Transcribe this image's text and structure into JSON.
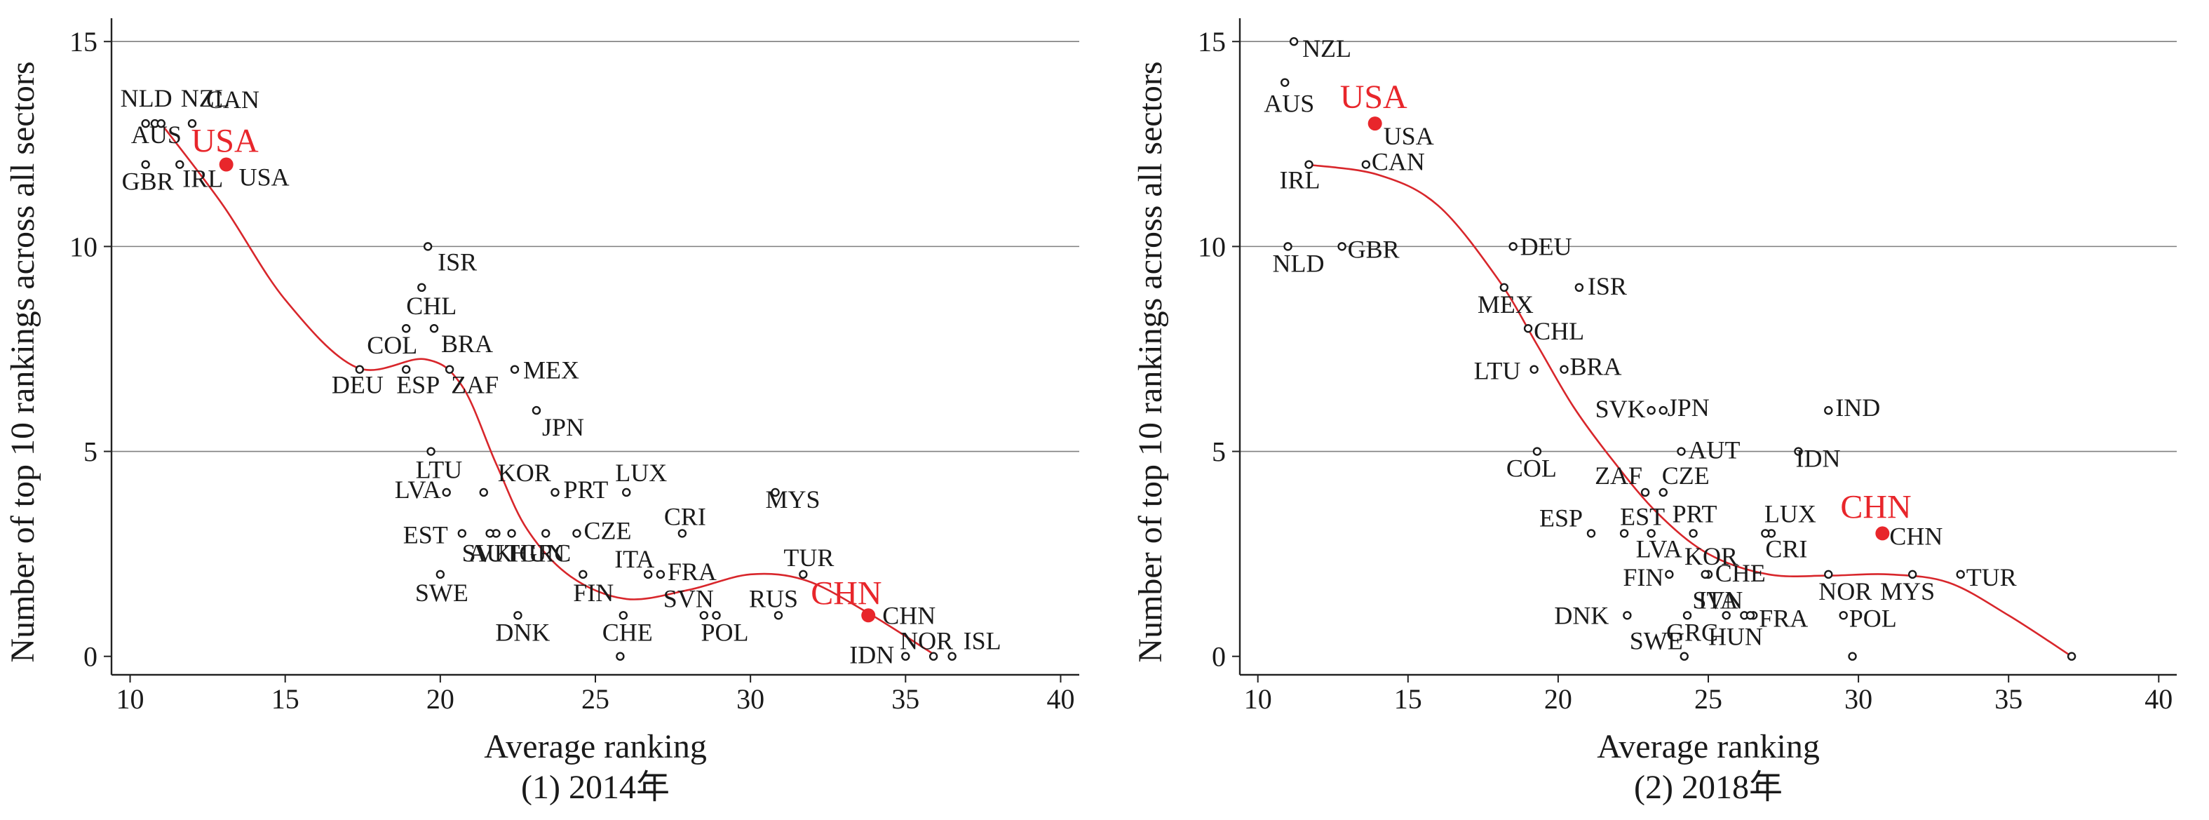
{
  "colors": {
    "highlight": "#e8262b",
    "curve": "#d8262b",
    "axis": "#222222",
    "grid": "#7f7f7f",
    "text": "#1a1a1a",
    "marker": "#1a1a1a"
  },
  "chart_data": [
    {
      "type": "scatter",
      "caption": "(1) 2014年",
      "xlabel": "Average ranking",
      "ylabel": "Number of top 10 rankings across all sectors",
      "xlim": [
        9.4,
        40.6
      ],
      "ylim": [
        -0.45,
        15.5
      ],
      "xticks": [
        10,
        15,
        20,
        25,
        30,
        35,
        40
      ],
      "yticks": [
        0,
        5,
        10,
        15
      ],
      "grid": "horizontal",
      "points": [
        {
          "label": "NLD",
          "x": 10.5,
          "y": 13
        },
        {
          "label": "AUS",
          "x": 10.8,
          "y": 13
        },
        {
          "label": "GBR",
          "x": 10.5,
          "y": 12
        },
        {
          "label": "NZL",
          "x": 11.0,
          "y": 13
        },
        {
          "label": "CAN",
          "x": 12.0,
          "y": 13
        },
        {
          "label": "IRL",
          "x": 11.6,
          "y": 12
        },
        {
          "label": "USA",
          "x": 13.1,
          "y": 12,
          "highlight": true,
          "tag": "USA"
        },
        {
          "label": "ISR",
          "x": 19.6,
          "y": 10
        },
        {
          "label": "CHL",
          "x": 19.4,
          "y": 9
        },
        {
          "label": "COL",
          "x": 18.9,
          "y": 8
        },
        {
          "label": "BRA",
          "x": 19.8,
          "y": 8
        },
        {
          "label": "DEU",
          "x": 17.4,
          "y": 7
        },
        {
          "label": "ESP",
          "x": 18.9,
          "y": 7
        },
        {
          "label": "ZAF",
          "x": 20.3,
          "y": 7
        },
        {
          "label": "MEX",
          "x": 22.4,
          "y": 7
        },
        {
          "label": "JPN",
          "x": 23.1,
          "y": 6
        },
        {
          "label": "LTU",
          "x": 19.7,
          "y": 5
        },
        {
          "label": "LVA",
          "x": 20.2,
          "y": 4
        },
        {
          "label": "KOR",
          "x": 21.4,
          "y": 4
        },
        {
          "label": "PRT",
          "x": 23.7,
          "y": 4
        },
        {
          "label": "LUX",
          "x": 26.0,
          "y": 4
        },
        {
          "label": "MYS",
          "x": 30.8,
          "y": 4
        },
        {
          "label": "AUT",
          "x": 21.8,
          "y": 3
        },
        {
          "label": "HUN",
          "x": 22.3,
          "y": 3
        },
        {
          "label": "EST",
          "x": 20.7,
          "y": 3
        },
        {
          "label": "SVK",
          "x": 21.6,
          "y": 3
        },
        {
          "label": "CZE",
          "x": 24.4,
          "y": 3
        },
        {
          "label": "GRC",
          "x": 23.4,
          "y": 3
        },
        {
          "label": "CRI",
          "x": 27.8,
          "y": 3
        },
        {
          "label": "SWE",
          "x": 20.0,
          "y": 2
        },
        {
          "label": "ITA",
          "x": 26.7,
          "y": 2
        },
        {
          "label": "FRA",
          "x": 27.1,
          "y": 2
        },
        {
          "label": "FIN",
          "x": 24.6,
          "y": 2
        },
        {
          "label": "TUR",
          "x": 31.7,
          "y": 2
        },
        {
          "label": "DNK",
          "x": 22.5,
          "y": 1
        },
        {
          "label": "CHE",
          "x": 25.9,
          "y": 1
        },
        {
          "label": "SVN",
          "x": 28.5,
          "y": 1
        },
        {
          "label": "POL",
          "x": 28.9,
          "y": 1
        },
        {
          "label": "RUS",
          "x": 30.9,
          "y": 1
        },
        {
          "label": "CHN",
          "x": 33.8,
          "y": 1,
          "highlight": true,
          "tag": "CHN"
        },
        {
          "label": "IDN",
          "x": 35.0,
          "y": 0
        },
        {
          "label": "NOR",
          "x": 35.9,
          "y": 0
        },
        {
          "label": "ISL",
          "x": 36.5,
          "y": 0
        },
        {
          "label": "",
          "x": 25.8,
          "y": 0
        }
      ],
      "trend": [
        [
          11.1,
          12.9
        ],
        [
          13.0,
          11.0
        ],
        [
          15.0,
          8.7
        ],
        [
          17.3,
          7.05
        ],
        [
          19.5,
          7.25
        ],
        [
          20.7,
          6.6
        ],
        [
          21.8,
          4.7
        ],
        [
          22.8,
          3.1
        ],
        [
          24.2,
          1.95
        ],
        [
          26.0,
          1.4
        ],
        [
          28.0,
          1.62
        ],
        [
          30.0,
          2.0
        ],
        [
          31.8,
          1.85
        ],
        [
          33.7,
          1.1
        ],
        [
          35.6,
          0.2
        ],
        [
          36.0,
          0.0
        ]
      ]
    },
    {
      "type": "scatter",
      "caption": "(2) 2018年",
      "xlabel": "Average ranking",
      "ylabel": "Number of top 10 rankings across all sectors",
      "xlim": [
        9.4,
        40.6
      ],
      "ylim": [
        -0.45,
        15.5
      ],
      "xticks": [
        10,
        15,
        20,
        25,
        30,
        35,
        40
      ],
      "yticks": [
        0,
        5,
        10,
        15
      ],
      "grid": "horizontal",
      "points": [
        {
          "label": "NZL",
          "x": 11.2,
          "y": 15
        },
        {
          "label": "AUS",
          "x": 10.9,
          "y": 14
        },
        {
          "label": "USA",
          "x": 13.9,
          "y": 13,
          "highlight": true,
          "tag": "USA"
        },
        {
          "label": "IRL",
          "x": 11.7,
          "y": 12
        },
        {
          "label": "CAN",
          "x": 13.6,
          "y": 12
        },
        {
          "label": "NLD",
          "x": 11.0,
          "y": 10
        },
        {
          "label": "GBR",
          "x": 12.8,
          "y": 10
        },
        {
          "label": "DEU",
          "x": 18.5,
          "y": 10
        },
        {
          "label": "MEX",
          "x": 18.2,
          "y": 9
        },
        {
          "label": "ISR",
          "x": 20.7,
          "y": 9
        },
        {
          "label": "CHL",
          "x": 19.0,
          "y": 8
        },
        {
          "label": "LTU",
          "x": 19.2,
          "y": 7
        },
        {
          "label": "BRA",
          "x": 20.2,
          "y": 7
        },
        {
          "label": "SVK",
          "x": 23.1,
          "y": 6
        },
        {
          "label": "JPN",
          "x": 23.5,
          "y": 6
        },
        {
          "label": "IND",
          "x": 29.0,
          "y": 6
        },
        {
          "label": "COL",
          "x": 19.3,
          "y": 5
        },
        {
          "label": "AUT",
          "x": 24.1,
          "y": 5
        },
        {
          "label": "IDN",
          "x": 28.0,
          "y": 5
        },
        {
          "label": "ZAF",
          "x": 22.9,
          "y": 4
        },
        {
          "label": "CZE",
          "x": 23.5,
          "y": 4
        },
        {
          "label": "CHN",
          "x": 30.8,
          "y": 3,
          "highlight": true,
          "tag": "CHN"
        },
        {
          "label": "ESP",
          "x": 21.1,
          "y": 3
        },
        {
          "label": "EST",
          "x": 22.2,
          "y": 3
        },
        {
          "label": "PRT",
          "x": 24.5,
          "y": 3
        },
        {
          "label": "LUX",
          "x": 27.1,
          "y": 3
        },
        {
          "label": "LVA",
          "x": 23.1,
          "y": 3
        },
        {
          "label": "KOR",
          "x": 25.0,
          "y": 2
        },
        {
          "label": "CRI",
          "x": 26.9,
          "y": 3
        },
        {
          "label": "FIN",
          "x": 23.7,
          "y": 2
        },
        {
          "label": "CHE",
          "x": 24.9,
          "y": 2
        },
        {
          "label": "GRC",
          "x": 24.3,
          "y": 1
        },
        {
          "label": "ITA",
          "x": 25.6,
          "y": 1
        },
        {
          "label": "NOR",
          "x": 29.0,
          "y": 2
        },
        {
          "label": "MYS",
          "x": 31.8,
          "y": 2
        },
        {
          "label": "TUR",
          "x": 33.4,
          "y": 2
        },
        {
          "label": "FRA",
          "x": 26.5,
          "y": 1
        },
        {
          "label": "POL",
          "x": 29.5,
          "y": 1
        },
        {
          "label": "DNK",
          "x": 22.3,
          "y": 1
        },
        {
          "label": "SWE",
          "x": 24.2,
          "y": 0
        },
        {
          "label": "SVN",
          "x": 26.2,
          "y": 1
        },
        {
          "label": "HUN",
          "x": 26.4,
          "y": 1
        },
        {
          "label": "",
          "x": 29.8,
          "y": 0
        },
        {
          "label": "",
          "x": 37.1,
          "y": 0
        }
      ],
      "trend": [
        [
          11.6,
          12.0
        ],
        [
          14.0,
          11.75
        ],
        [
          16.0,
          11.0
        ],
        [
          18.0,
          9.2
        ],
        [
          19.3,
          7.6
        ],
        [
          20.5,
          6.1
        ],
        [
          21.8,
          4.8
        ],
        [
          23.3,
          3.5
        ],
        [
          25.0,
          2.5
        ],
        [
          27.0,
          2.0
        ],
        [
          29.0,
          1.97
        ],
        [
          31.0,
          2.0
        ],
        [
          33.0,
          1.8
        ],
        [
          35.0,
          1.0
        ],
        [
          37.1,
          0.0
        ]
      ]
    }
  ]
}
